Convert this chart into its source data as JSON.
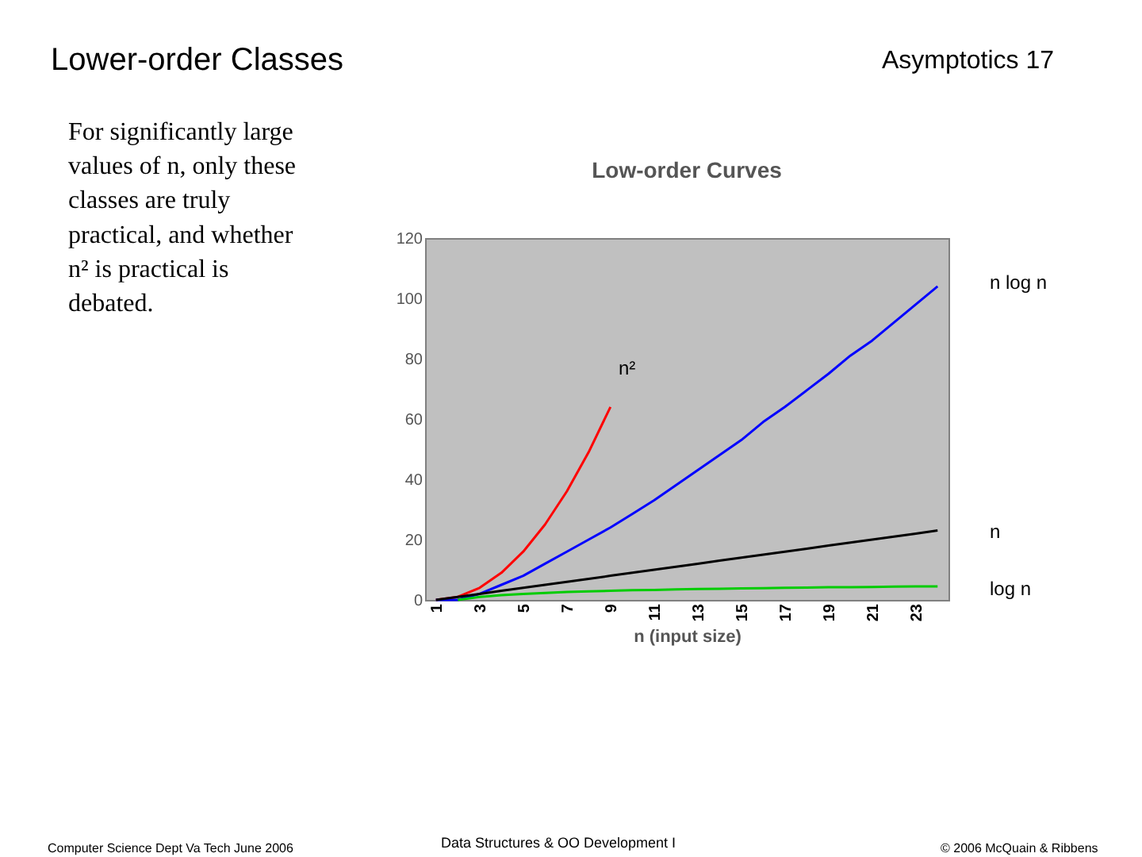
{
  "chart_data": {
    "type": "line",
    "title": "Low-order Curves",
    "xlabel": "n (input size)",
    "categories": [
      "1",
      null,
      "3",
      null,
      "5",
      null,
      "7",
      null,
      "9",
      null,
      "11",
      null,
      "13",
      null,
      "15",
      null,
      "17",
      null,
      "19",
      null,
      "21",
      null,
      "23",
      null
    ],
    "series": [
      {
        "name": "n²",
        "color": "#ff0000",
        "values": [
          0,
          1,
          4,
          9,
          16,
          25,
          36,
          49,
          64,
          null,
          null,
          null,
          null,
          null,
          null,
          null,
          null,
          null,
          null,
          null,
          null,
          null,
          null,
          null
        ]
      },
      {
        "name": "n log n",
        "color": "#0000ff",
        "values": [
          0,
          0,
          2,
          5,
          8,
          12,
          16,
          20,
          24,
          28.5,
          33,
          38,
          43,
          48,
          53,
          59,
          64,
          69.5,
          75,
          81,
          86,
          92,
          98,
          104
        ]
      },
      {
        "name": "n",
        "color": "#000000",
        "values": [
          0,
          1,
          2,
          3,
          4,
          5,
          6,
          7,
          8,
          9,
          10,
          11,
          12,
          13,
          14,
          15,
          16,
          17,
          18,
          19,
          20,
          21,
          22,
          23
        ]
      },
      {
        "name": "log n",
        "color": "#00cc00",
        "values": [
          null,
          0,
          1,
          1.6,
          2,
          2.3,
          2.6,
          2.8,
          3,
          3.2,
          3.3,
          3.5,
          3.6,
          3.7,
          3.8,
          3.9,
          4,
          4.1,
          4.2,
          4.2,
          4.3,
          4.4,
          4.5,
          4.5
        ]
      }
    ],
    "ylim": [
      0,
      120
    ],
    "yticks": [
      0,
      20,
      40,
      60,
      80,
      100,
      120
    ],
    "grid": false,
    "marker": "none",
    "line_style": "solid",
    "annotations": [
      "Lower-order Classes",
      "Asymptotics   17",
      "For significantly large\nvalues of n, only these\nclasses are truly\npractical, and whether\nn² is practical is\ndebated.",
      "Computer Science Dept Va Tech June 2006",
      "Data Structures & OO Development I",
      "© 2006  McQuain & Ribbens"
    ]
  }
}
